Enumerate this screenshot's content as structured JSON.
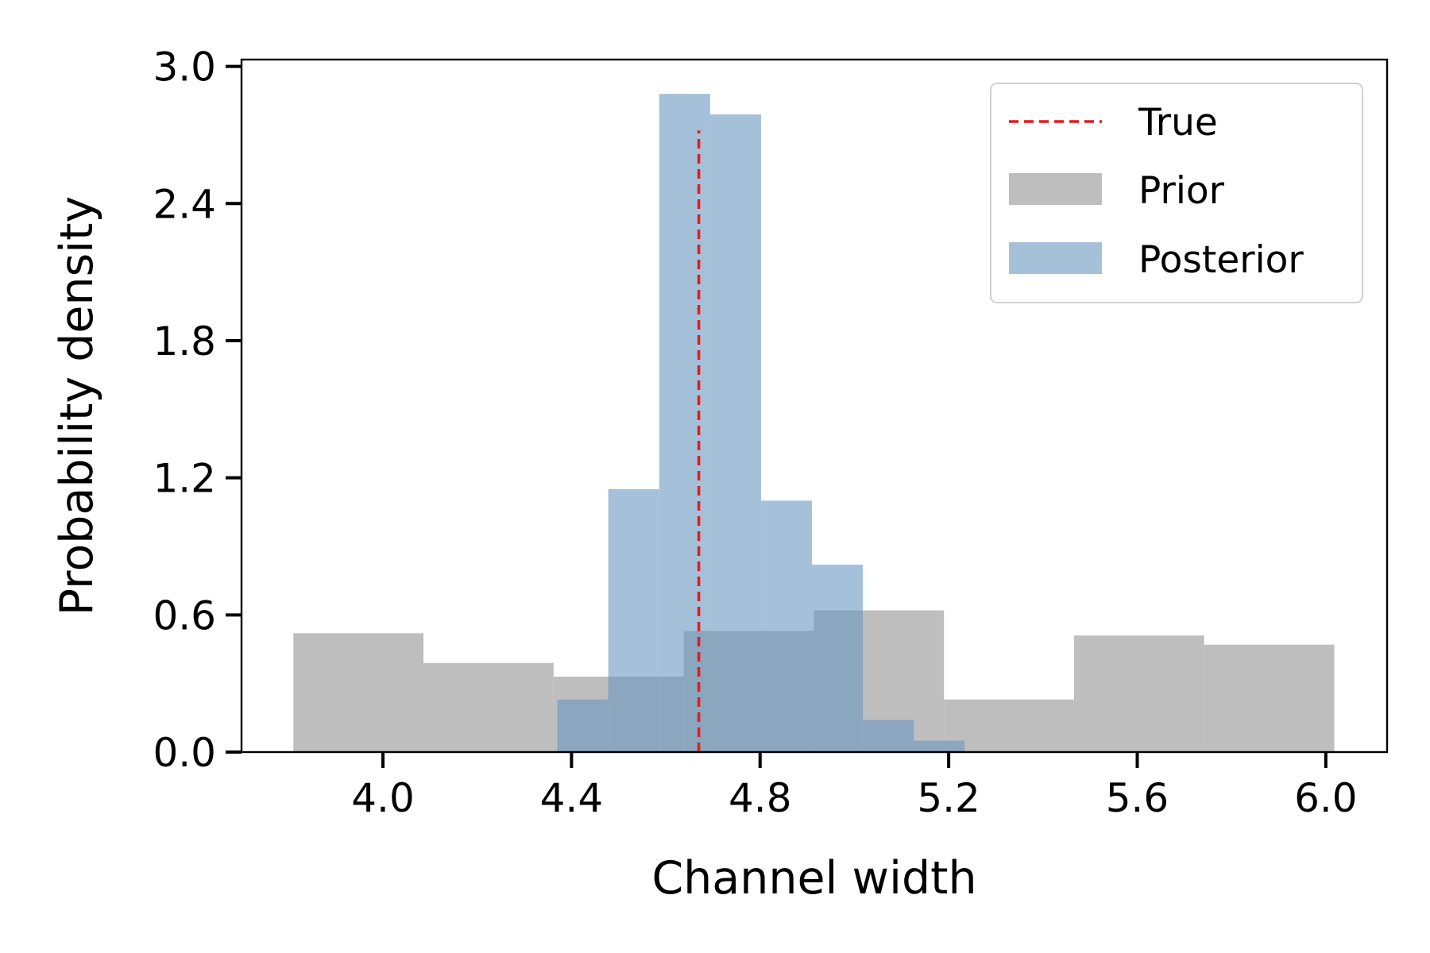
{
  "chart_data": {
    "type": "bar",
    "title": "",
    "xlabel": "Channel width",
    "ylabel": "Probability density",
    "xlim": [
      3.7,
      6.13
    ],
    "ylim": [
      0.0,
      3.03
    ],
    "xticks": [
      4.0,
      4.4,
      4.8,
      5.2,
      5.6,
      6.0
    ],
    "xtick_labels": [
      "4.0",
      "4.4",
      "4.8",
      "5.2",
      "5.6",
      "6.0"
    ],
    "yticks": [
      0.0,
      0.6,
      1.2,
      1.8,
      2.4,
      3.0
    ],
    "ytick_labels": [
      "0.0",
      "0.6",
      "1.2",
      "1.8",
      "2.4",
      "3.0"
    ],
    "grid": false,
    "legend_position": "top-right",
    "series": [
      {
        "name": "Prior",
        "kind": "histogram",
        "color": "#bebebe",
        "bins": [
          {
            "x0": 3.81,
            "x1": 4.086,
            "density": 0.52
          },
          {
            "x0": 4.086,
            "x1": 4.362,
            "density": 0.39
          },
          {
            "x0": 4.362,
            "x1": 4.638,
            "density": 0.33
          },
          {
            "x0": 4.638,
            "x1": 4.914,
            "density": 0.53
          },
          {
            "x0": 4.914,
            "x1": 5.19,
            "density": 0.62
          },
          {
            "x0": 5.19,
            "x1": 5.466,
            "density": 0.23
          },
          {
            "x0": 5.466,
            "x1": 5.742,
            "density": 0.51
          },
          {
            "x0": 5.742,
            "x1": 6.018,
            "density": 0.47
          }
        ]
      },
      {
        "name": "Posterior",
        "kind": "histogram",
        "color": "#6996c0",
        "opacity": 0.6,
        "bins": [
          {
            "x0": 4.37,
            "x1": 4.478,
            "density": 0.23
          },
          {
            "x0": 4.478,
            "x1": 4.586,
            "density": 1.15
          },
          {
            "x0": 4.586,
            "x1": 4.694,
            "density": 2.88
          },
          {
            "x0": 4.694,
            "x1": 4.802,
            "density": 2.79
          },
          {
            "x0": 4.802,
            "x1": 4.91,
            "density": 1.1
          },
          {
            "x0": 4.91,
            "x1": 5.018,
            "density": 0.82
          },
          {
            "x0": 5.018,
            "x1": 5.126,
            "density": 0.14
          },
          {
            "x0": 5.126,
            "x1": 5.234,
            "density": 0.05
          }
        ]
      }
    ],
    "reference_line": {
      "name": "True",
      "x": 4.67,
      "y_top": 2.72,
      "color": "#e41a1c",
      "style": "dashed"
    },
    "legend": [
      {
        "label": "True",
        "kind": "line",
        "color": "#e41a1c"
      },
      {
        "label": "Prior",
        "kind": "patch",
        "color": "#bebebe"
      },
      {
        "label": "Posterior",
        "kind": "patch",
        "color": "#6996c0"
      }
    ]
  }
}
